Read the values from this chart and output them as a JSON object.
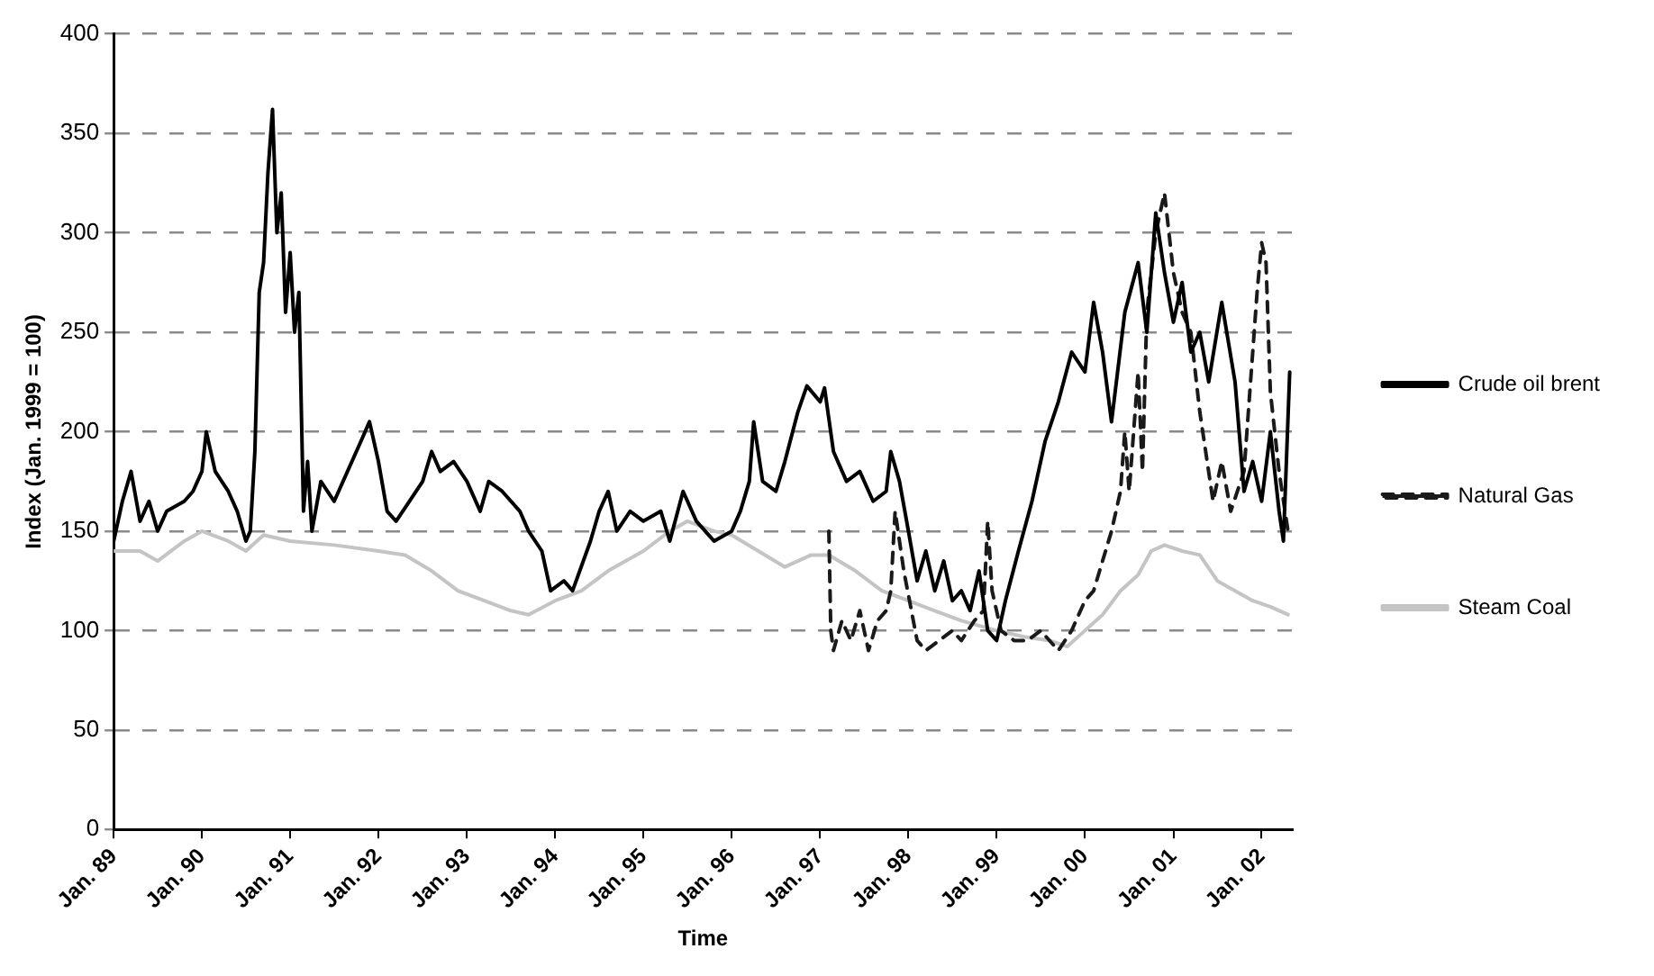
{
  "chart_data": {
    "type": "line",
    "xlabel": "Time",
    "ylabel": "Index (Jan. 1999 = 100)",
    "xlim": [
      "1989-01-01",
      "2002-05-08"
    ],
    "ylim": [
      0,
      400
    ],
    "xticks": [
      {
        "value": "1989-01",
        "label": "Jan. 89"
      },
      {
        "value": "1990-01",
        "label": "Jan. 90"
      },
      {
        "value": "1991-01",
        "label": "Jan. 91"
      },
      {
        "value": "1992-01",
        "label": "Jan. 92"
      },
      {
        "value": "1993-01",
        "label": "Jan. 93"
      },
      {
        "value": "1994-01",
        "label": "Jan. 94"
      },
      {
        "value": "1995-01",
        "label": "Jan. 95"
      },
      {
        "value": "1996-01",
        "label": "Jan. 96"
      },
      {
        "value": "1997-01",
        "label": "Jan. 97"
      },
      {
        "value": "1998-01",
        "label": "Jan. 98"
      },
      {
        "value": "1999-01",
        "label": "Jan. 99"
      },
      {
        "value": "2000-01",
        "label": "Jan. 00"
      },
      {
        "value": "2001-01",
        "label": "Jan. 01"
      },
      {
        "value": "2002-01",
        "label": "Jan. 02"
      }
    ],
    "yticks": [
      0,
      50,
      100,
      150,
      200,
      250,
      300,
      350,
      400
    ],
    "grid": "y",
    "legend": "right",
    "marker": "none",
    "series": [
      {
        "name": "Crude oil brent",
        "color": "#000000",
        "line_style": "solid",
        "x": [
          "1989-01-01",
          "1989-02-06",
          "1989-03-14",
          "1989-04-20",
          "1989-05-27",
          "1989-07-02",
          "1989-08-08",
          "1989-10-20",
          "1989-11-25",
          "1990-01-01",
          "1990-01-19",
          "1990-02-25",
          "1990-04-20",
          "1990-05-27",
          "1990-07-02",
          "1990-07-20",
          "1990-08-08",
          "1990-08-26",
          "1990-09-13",
          "1990-10-01",
          "1990-10-20",
          "1990-11-07",
          "1990-11-25",
          "1990-12-13",
          "1991-01-01",
          "1991-01-19",
          "1991-02-06",
          "1991-02-25",
          "1991-03-14",
          "1991-04-01",
          "1991-05-08",
          "1991-07-02",
          "1991-08-26",
          "1991-10-20",
          "1991-11-25",
          "1992-01-01",
          "1992-02-06",
          "1992-03-14",
          "1992-05-08",
          "1992-07-02",
          "1992-08-08",
          "1992-09-13",
          "1992-11-07",
          "1993-01-01",
          "1993-02-25",
          "1993-04-01",
          "1993-05-27",
          "1993-08-08",
          "1993-09-13",
          "1993-11-07",
          "1993-12-13",
          "1994-02-06",
          "1994-03-14",
          "1994-05-27",
          "1994-07-02",
          "1994-08-08",
          "1994-09-13",
          "1994-11-07",
          "1995-01-01",
          "1995-03-14",
          "1995-04-20",
          "1995-06-14",
          "1995-08-08",
          "1995-10-20",
          "1996-01-01",
          "1996-02-06",
          "1996-03-14",
          "1996-04-01",
          "1996-05-08",
          "1996-07-02",
          "1996-08-08",
          "1996-10-01",
          "1996-11-07",
          "1997-01-01",
          "1997-01-19",
          "1997-02-25",
          "1997-04-20",
          "1997-06-14",
          "1997-08-08",
          "1997-10-01",
          "1997-10-20",
          "1997-11-25",
          "1998-01-01",
          "1998-02-06",
          "1998-03-14",
          "1998-04-20",
          "1998-05-27",
          "1998-07-02",
          "1998-08-08",
          "1998-09-13",
          "1998-10-20",
          "1998-11-25",
          "1999-01-01",
          "1999-02-06",
          "1999-04-01",
          "1999-05-27",
          "1999-07-20",
          "1999-09-13",
          "1999-11-07",
          "2000-01-01",
          "2000-02-06",
          "2000-03-14",
          "2000-04-20",
          "2000-06-14",
          "2000-08-08",
          "2000-09-13",
          "2000-10-20",
          "2000-11-25",
          "2001-01-01",
          "2001-02-06",
          "2001-03-14",
          "2001-04-20",
          "2001-05-27",
          "2001-07-20",
          "2001-09-13",
          "2001-10-20",
          "2001-11-25",
          "2002-01-01",
          "2002-02-06",
          "2002-03-14",
          "2002-04-01",
          "2002-04-27"
        ],
        "values": [
          145,
          165,
          180,
          155,
          165,
          150,
          160,
          165,
          170,
          180,
          200,
          180,
          170,
          160,
          145,
          150,
          190,
          270,
          285,
          330,
          362,
          300,
          320,
          260,
          290,
          250,
          270,
          160,
          185,
          150,
          175,
          165,
          180,
          195,
          205,
          185,
          160,
          155,
          165,
          175,
          190,
          180,
          185,
          175,
          160,
          175,
          170,
          160,
          150,
          140,
          120,
          125,
          120,
          145,
          160,
          170,
          150,
          160,
          155,
          160,
          145,
          170,
          155,
          145,
          150,
          160,
          175,
          205,
          175,
          170,
          185,
          210,
          223,
          215,
          222,
          190,
          175,
          180,
          165,
          170,
          190,
          175,
          150,
          125,
          140,
          120,
          135,
          115,
          120,
          110,
          130,
          100,
          95,
          115,
          140,
          165,
          195,
          215,
          240,
          230,
          265,
          240,
          205,
          260,
          285,
          250,
          310,
          280,
          255,
          275,
          240,
          250,
          225,
          265,
          225,
          170,
          185,
          165,
          200,
          160,
          145,
          230
        ]
      },
      {
        "name": "Natural Gas",
        "color": "#1a1a1a",
        "line_style": "dashed",
        "x": [
          "1997-02-06",
          "1997-02-14",
          "1997-02-25",
          "1997-04-01",
          "1997-05-08",
          "1997-06-14",
          "1997-07-20",
          "1997-08-26",
          "1997-10-01",
          "1997-10-20",
          "1997-11-07",
          "1997-12-13",
          "1998-02-06",
          "1998-03-14",
          "1998-05-08",
          "1998-07-02",
          "1998-08-08",
          "1998-10-01",
          "1998-11-07",
          "1998-11-25",
          "1998-12-13",
          "1999-01-19",
          "1999-03-14",
          "1999-05-08",
          "1999-07-02",
          "1999-09-13",
          "1999-11-07",
          "2000-01-01",
          "2000-02-06",
          "2000-03-14",
          "2000-04-20",
          "2000-05-27",
          "2000-06-14",
          "2000-07-02",
          "2000-08-08",
          "2000-08-26",
          "2000-09-13",
          "2000-10-20",
          "2000-11-25",
          "2001-01-01",
          "2001-02-06",
          "2001-03-14",
          "2001-04-20",
          "2001-06-14",
          "2001-07-20",
          "2001-08-26",
          "2001-10-20",
          "2001-12-13",
          "2002-01-01",
          "2002-01-19",
          "2002-02-06",
          "2002-03-14",
          "2002-04-20"
        ],
        "values": [
          150,
          100,
          90,
          105,
          95,
          110,
          90,
          105,
          110,
          120,
          160,
          130,
          95,
          90,
          95,
          100,
          95,
          105,
          110,
          155,
          120,
          100,
          95,
          95,
          100,
          90,
          100,
          115,
          120,
          135,
          150,
          170,
          200,
          170,
          230,
          180,
          260,
          300,
          320,
          280,
          260,
          250,
          210,
          165,
          185,
          160,
          180,
          270,
          295,
          285,
          220,
          180,
          150
        ]
      },
      {
        "name": "Steam Coal",
        "color": "#c4c4c4",
        "line_style": "solid",
        "x": [
          "1989-01-01",
          "1989-04-20",
          "1989-07-02",
          "1989-10-20",
          "1990-01-01",
          "1990-04-20",
          "1990-07-02",
          "1990-09-13",
          "1991-01-01",
          "1991-07-02",
          "1992-01-01",
          "1992-04-20",
          "1992-08-08",
          "1992-11-25",
          "1993-03-14",
          "1993-07-02",
          "1993-09-13",
          "1994-01-01",
          "1994-04-20",
          "1994-08-08",
          "1995-01-01",
          "1995-04-20",
          "1995-07-02",
          "1995-10-20",
          "1996-01-01",
          "1996-04-20",
          "1996-08-08",
          "1996-11-25",
          "1997-02-06",
          "1997-05-27",
          "1997-09-13",
          "1998-01-01",
          "1998-04-20",
          "1998-08-08",
          "1999-01-01",
          "1999-04-20",
          "1999-08-08",
          "1999-10-20",
          "2000-01-01",
          "2000-03-14",
          "2000-05-27",
          "2000-08-08",
          "2000-10-01",
          "2000-11-25",
          "2001-02-06",
          "2001-04-20",
          "2001-07-02",
          "2001-09-13",
          "2001-11-25",
          "2002-02-06",
          "2002-04-20"
        ],
        "values": [
          140,
          140,
          135,
          145,
          150,
          145,
          140,
          148,
          145,
          143,
          140,
          138,
          130,
          120,
          115,
          110,
          108,
          115,
          120,
          130,
          140,
          150,
          155,
          150,
          148,
          140,
          132,
          138,
          138,
          130,
          120,
          115,
          110,
          105,
          100,
          97,
          95,
          92,
          100,
          108,
          120,
          128,
          140,
          143,
          140,
          138,
          125,
          120,
          115,
          112,
          108
        ]
      }
    ]
  }
}
